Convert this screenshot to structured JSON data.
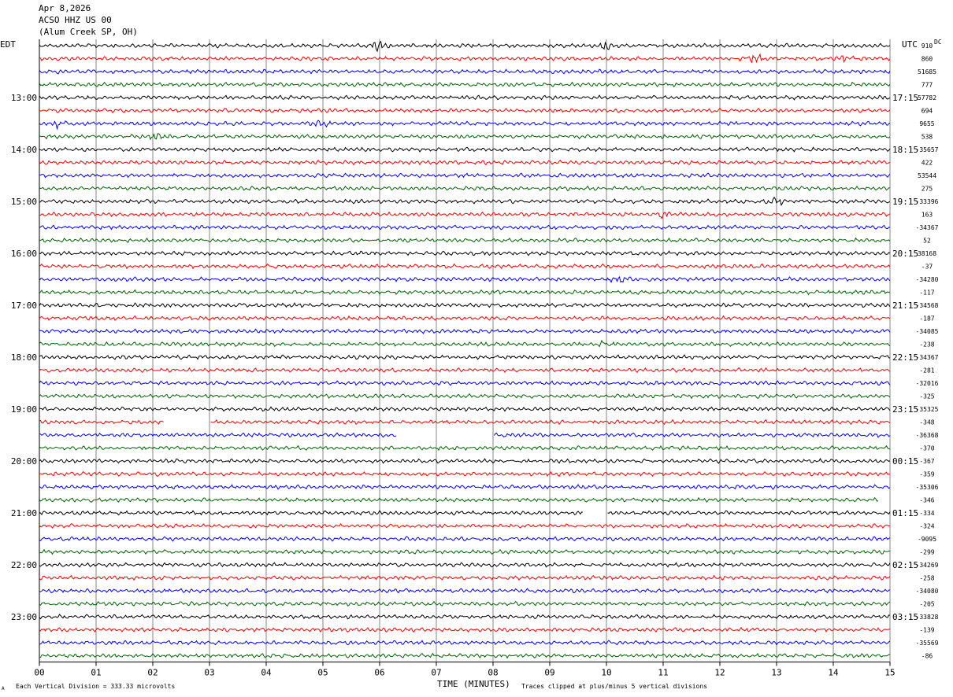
{
  "header": {
    "date": "Apr 8,2026",
    "station": "ACSO HHZ US 00",
    "location": "(Alum Creek SP, OH)"
  },
  "labels": {
    "left_tz": "EDT",
    "right_tz": "UTC",
    "dc": "DC"
  },
  "footer": {
    "vertical_division": "Each Vertical Division =  333.33 microvolts",
    "clip_note": "Traces clipped at plus/minus 5 vertical divisions",
    "corner_mark": "A"
  },
  "chart_data": {
    "type": "line",
    "title": "",
    "xlabel": "TIME (MINUTES)",
    "x_ticks": [
      "00",
      "01",
      "02",
      "03",
      "04",
      "05",
      "06",
      "07",
      "08",
      "09",
      "10",
      "11",
      "12",
      "13",
      "14",
      "15"
    ],
    "xlim": [
      0,
      15
    ],
    "traces_per_hour": 4,
    "minutes_per_trace": 15,
    "trace_colors": [
      "#000000",
      "#ff0000",
      "#0000ff",
      "#006400"
    ],
    "left_hour_labels": [
      "13:00",
      "14:00",
      "15:00",
      "16:00",
      "17:00",
      "18:00",
      "19:00",
      "20:00",
      "21:00",
      "22:00",
      "23:00"
    ],
    "right_hour_labels": [
      "17:15",
      "18:15",
      "19:15",
      "20:15",
      "21:15",
      "22:15",
      "23:15",
      "00:15",
      "01:15",
      "02:15",
      "03:15"
    ],
    "dc_offsets": [
      "910",
      "860",
      "51685",
      "777",
      "57782",
      "694",
      "9655",
      "538",
      "-35657",
      "422",
      "53544",
      "275",
      "-33396",
      "163",
      "-34367",
      "52",
      "38168",
      "-37",
      "-34280",
      "-117",
      "-34568",
      "-187",
      "-34085",
      "-238",
      "-34367",
      "-281",
      "-32016",
      "-325",
      "-35325",
      "-348",
      "-36368",
      "-370",
      "-367",
      "-359",
      "-35306",
      "-346",
      "-334",
      "-324",
      "-9095",
      "-299",
      "-34269",
      "-258",
      "-34080",
      "-205",
      "-33828",
      "-139",
      "-35569",
      "-86"
    ],
    "gaps": [
      {
        "trace": 29,
        "from_min": 2.2,
        "to_min": 3.0
      },
      {
        "trace": 30,
        "from_min": 6.3,
        "to_min": 8.0
      },
      {
        "trace": 36,
        "from_min": 9.6,
        "to_min": 10.0
      }
    ],
    "trace_end_min": [
      {
        "trace": 35,
        "end_min": 14.8
      }
    ],
    "events": [
      {
        "trace": 0,
        "minute": 6.0,
        "amp": 2.2
      },
      {
        "trace": 0,
        "minute": 10.0,
        "amp": 1.8
      },
      {
        "trace": 1,
        "minute": 12.6,
        "amp": 3.0
      },
      {
        "trace": 1,
        "minute": 14.2,
        "amp": 1.6
      },
      {
        "trace": 6,
        "minute": 0.3,
        "amp": 1.6
      },
      {
        "trace": 6,
        "minute": 5.0,
        "amp": 1.5
      },
      {
        "trace": 7,
        "minute": 2.1,
        "amp": 1.6
      },
      {
        "trace": 12,
        "minute": 13.0,
        "amp": 2.2
      },
      {
        "trace": 13,
        "minute": 11.0,
        "amp": 1.5
      },
      {
        "trace": 18,
        "minute": 10.2,
        "amp": 1.4
      },
      {
        "trace": 23,
        "minute": 10.0,
        "amp": 1.4
      }
    ]
  }
}
